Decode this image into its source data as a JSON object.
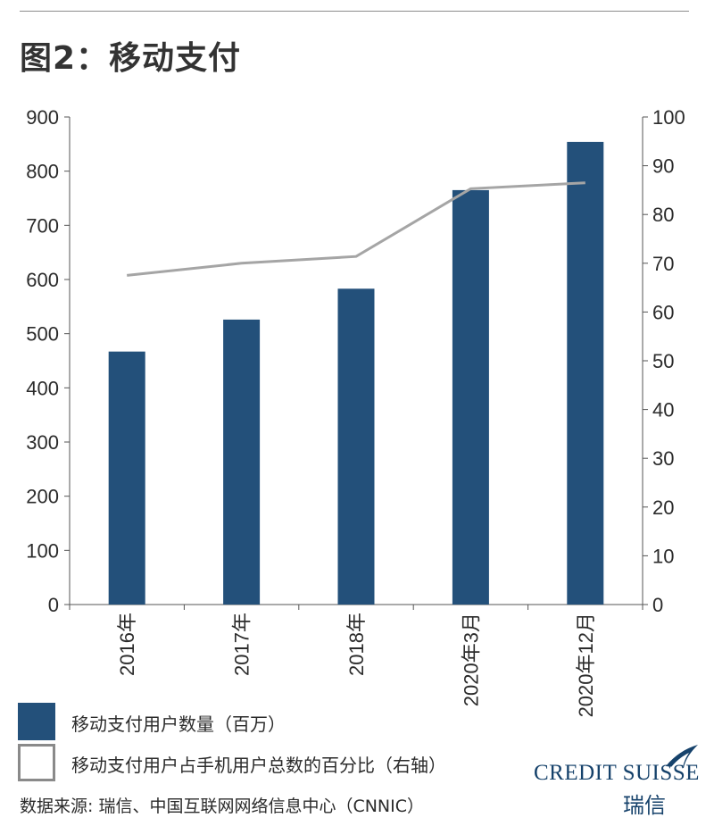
{
  "title": "图2：移动支付",
  "chart_data": {
    "type": "bar",
    "categories": [
      "2016年",
      "2017年",
      "2018年",
      "2020年3月",
      "2020年12月"
    ],
    "series": [
      {
        "name": "移动支付用户数量（百万）",
        "type": "bar",
        "axis": "left",
        "values": [
          467,
          526,
          583,
          765,
          854
        ],
        "color": "#23507a"
      },
      {
        "name": "移动支付用户占手机用户总数的百分比（右轴）",
        "type": "line",
        "axis": "right",
        "values": [
          67.5,
          70.0,
          71.4,
          85.3,
          86.5
        ],
        "color": "#a5a5a5"
      }
    ],
    "ylim": [
      0,
      900
    ],
    "y2lim": [
      0,
      100
    ],
    "yticks": [
      "0",
      "100",
      "200",
      "300",
      "400",
      "500",
      "600",
      "700",
      "800",
      "900"
    ],
    "y2ticks": [
      "0",
      "10",
      "20",
      "30",
      "40",
      "50",
      "60",
      "70",
      "80",
      "90",
      "100"
    ],
    "grid": false,
    "legend_position": "bottom-left"
  },
  "legend": {
    "bar_label": "移动支付用户数量（百万）",
    "line_label": "移动支付用户占手机用户总数的百分比（右轴）"
  },
  "source": "数据来源: 瑞信、中国互联网网络信息中心（CNNIC）",
  "logo": {
    "brand": "CREDIT SUISSE",
    "brand_cn": "瑞信"
  },
  "colors": {
    "bar": "#23507a",
    "line": "#a5a5a5",
    "axis": "#555555",
    "text": "#2b2b2b"
  }
}
